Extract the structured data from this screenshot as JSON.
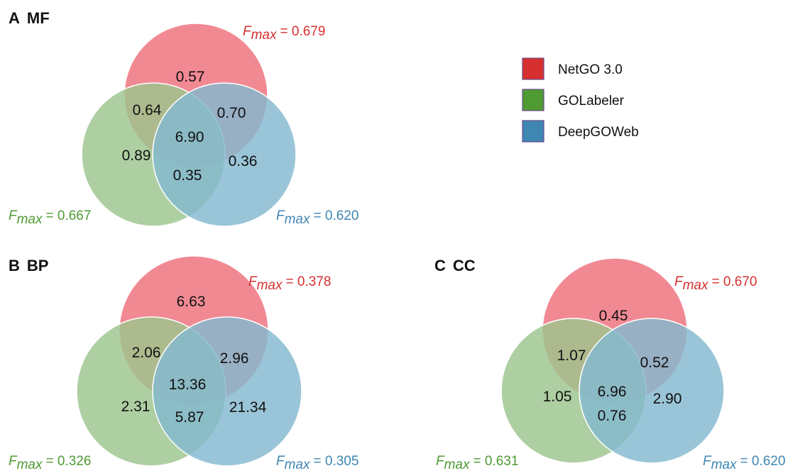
{
  "colors": {
    "netgo": "#d62f2f",
    "golabeler": "#4f9a33",
    "deepgoweb": "#3f86b3",
    "netgo_fill": "#ee6f7b",
    "golabeler_fill": "#9cc58e",
    "deepgoweb_fill": "#84b8d0"
  },
  "legend": {
    "items": [
      {
        "label": "NetGO 3.0",
        "color": "#d62f2f"
      },
      {
        "label": "GOLabeler",
        "color": "#4f9a33"
      },
      {
        "label": "DeepGOWeb",
        "color": "#3f86b3"
      }
    ]
  },
  "fmax_symbol": "F",
  "fmax_sub": "max",
  "panels": [
    {
      "letter": "A",
      "name": "MF",
      "fmax": {
        "netgo": "= 0.679",
        "golabeler": "= 0.667",
        "deepgoweb": "= 0.620"
      },
      "regions": {
        "netgo_only": "0.57",
        "netgo_golabeler": "0.64",
        "netgo_deepgoweb": "0.70",
        "all": "6.90",
        "golabeler_only": "0.89",
        "golabeler_deepgoweb": "0.35",
        "deepgoweb_only": "0.36"
      }
    },
    {
      "letter": "B",
      "name": "BP",
      "fmax": {
        "netgo": "= 0.378",
        "golabeler": "= 0.326",
        "deepgoweb": "= 0.305"
      },
      "regions": {
        "netgo_only": "6.63",
        "netgo_golabeler": "2.06",
        "netgo_deepgoweb": "2.96",
        "all": "13.36",
        "golabeler_only": "2.31",
        "golabeler_deepgoweb": "5.87",
        "deepgoweb_only": "21.34"
      }
    },
    {
      "letter": "C",
      "name": "CC",
      "fmax": {
        "netgo": "= 0.670",
        "golabeler": "= 0.631",
        "deepgoweb": "= 0.620"
      },
      "regions": {
        "netgo_only": "0.45",
        "netgo_golabeler": "1.07",
        "netgo_deepgoweb": "0.52",
        "all": "6.96",
        "golabeler_only": "1.05",
        "golabeler_deepgoweb": "0.76",
        "deepgoweb_only": "2.90"
      }
    }
  ]
}
